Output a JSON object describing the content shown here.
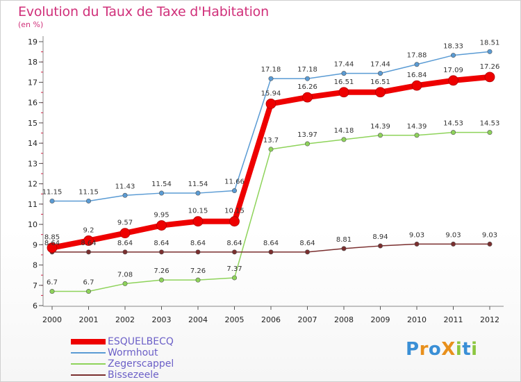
{
  "title": "Evolution du Taux de Taxe d'Habitation",
  "subtitle": "(en %)",
  "brand": {
    "text": "Proxiti",
    "letters": [
      {
        "char": "P",
        "color": "#3a8fd6"
      },
      {
        "char": "r",
        "color": "#e8901c"
      },
      {
        "char": "o",
        "color": "#3a8fd6"
      },
      {
        "char": "X",
        "color": "#e8901c"
      },
      {
        "char": "i",
        "color": "#8cc63f"
      },
      {
        "char": "t",
        "color": "#3a8fd6"
      },
      {
        "char": "i",
        "color": "#8cc63f"
      }
    ]
  },
  "chart_data": {
    "type": "line",
    "title": "Evolution du Taux de Taxe d'Habitation",
    "subtitle": "(en %)",
    "xlabel": "",
    "ylabel": "",
    "x": [
      "2000",
      "2001",
      "2002",
      "2003",
      "2004",
      "2005",
      "2006",
      "2007",
      "2008",
      "2009",
      "2010",
      "2011",
      "2012"
    ],
    "ylim": [
      6,
      19
    ],
    "yticks": [
      6,
      7,
      8,
      9,
      10,
      11,
      12,
      13,
      14,
      15,
      16,
      17,
      18,
      19
    ],
    "grid": false,
    "legend_position": "bottom-left",
    "series": [
      {
        "name": "ESQUELBECQ",
        "color": "#ee0000",
        "values": [
          8.85,
          9.2,
          9.57,
          9.95,
          10.15,
          10.15,
          15.94,
          16.26,
          16.51,
          16.51,
          16.84,
          17.09,
          17.26
        ],
        "labels": [
          "8.85",
          "9.2",
          "9.57",
          "9.95",
          "10.15",
          "10.15",
          "15.94",
          "16.26",
          "16.51",
          "16.51",
          "16.84",
          "17.09",
          "17.26"
        ],
        "bold": true
      },
      {
        "name": "Wormhout",
        "color": "#5a9bd4",
        "values": [
          11.15,
          11.15,
          11.43,
          11.54,
          11.54,
          11.66,
          17.18,
          17.18,
          17.44,
          17.44,
          17.88,
          18.33,
          18.51
        ],
        "labels": [
          "11.15",
          "11.15",
          "11.43",
          "11.54",
          "11.54",
          "11.66",
          "17.18",
          "17.18",
          "17.44",
          "17.44",
          "17.88",
          "18.33",
          "18.51"
        ],
        "bold": false
      },
      {
        "name": "Zegerscappel",
        "color": "#8ed35a",
        "values": [
          6.7,
          6.7,
          7.08,
          7.26,
          7.26,
          7.37,
          13.7,
          13.97,
          14.18,
          14.39,
          14.39,
          14.53,
          14.53
        ],
        "labels": [
          "6.7",
          "6.7",
          "7.08",
          "7.26",
          "7.26",
          "7.37",
          "13.7",
          "13.97",
          "14.18",
          "14.39",
          "14.39",
          "14.53",
          "14.53"
        ],
        "bold": false
      },
      {
        "name": "Bissezeele",
        "color": "#7a2e2e",
        "values": [
          8.64,
          8.64,
          8.64,
          8.64,
          8.64,
          8.64,
          8.64,
          8.64,
          8.81,
          8.94,
          9.03,
          9.03,
          9.03
        ],
        "labels": [
          "8.64",
          "8.64",
          "8.64",
          "8.64",
          "8.64",
          "8.64",
          "8.64",
          "8.64",
          "8.81",
          "8.94",
          "9.03",
          "9.03",
          "9.03"
        ],
        "bold": false
      }
    ]
  }
}
